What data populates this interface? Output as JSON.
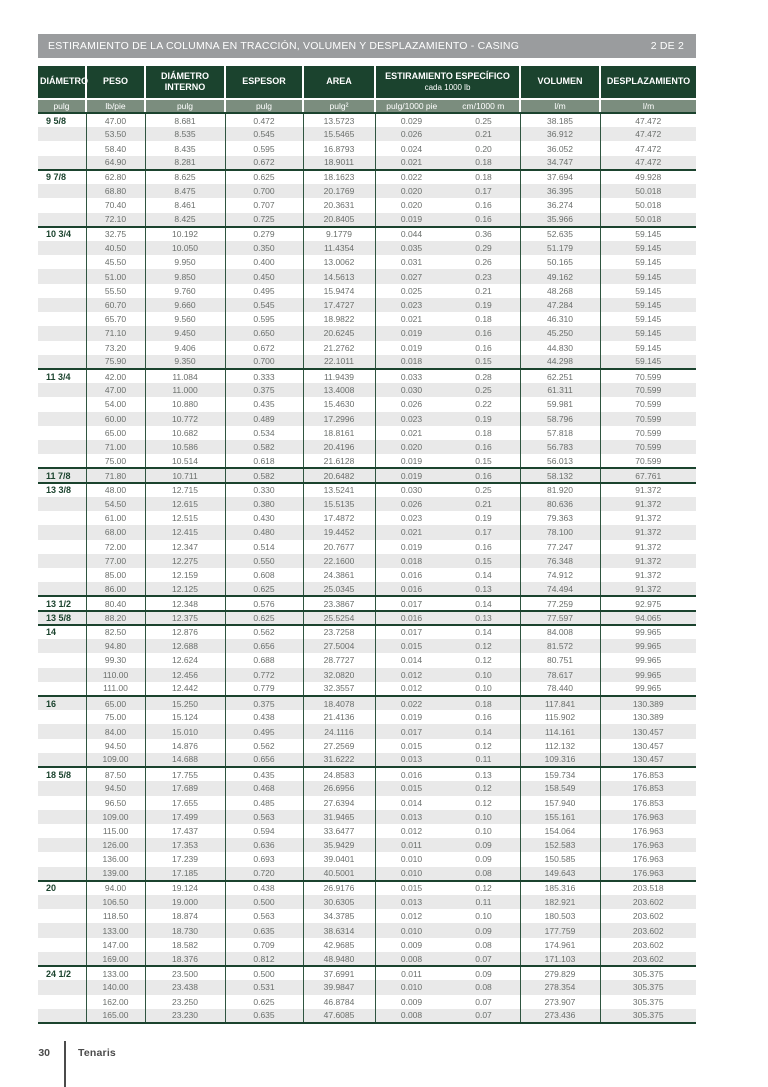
{
  "header": {
    "title": "ESTIRAMIENTO DE LA COLUMNA EN TRACCIÓN, VOLUMEN Y DESPLAZAMIENTO - CASING",
    "page_indicator": "2 DE 2"
  },
  "colors": {
    "title_bar_bg": "#9a9c9e",
    "header_bg": "#1b432e",
    "units_bg": "#7b8d7e",
    "stripe": "#e9e9e9",
    "line": "#2f5540",
    "group_line": "#1b432e",
    "data_text": "#6b6f6c",
    "accent_text": "#1b432e",
    "footer_text": "#4b4b4b"
  },
  "table": {
    "columns": [
      {
        "label": "DIÁMETRO"
      },
      {
        "label": "PESO"
      },
      {
        "label": "DIÁMETRO INTERNO"
      },
      {
        "label": "ESPESOR"
      },
      {
        "label": "AREA"
      },
      {
        "label": "ESTIRAMIENTO ESPECÍFICO",
        "sublabel": "cada 1000 lb"
      },
      {
        "label": "VOLUMEN"
      },
      {
        "label": "DESPLAZAMIENTO"
      }
    ],
    "units": [
      "pulg",
      "lb/pie",
      "pulg",
      "pulg",
      "pulg²",
      "pulg/1000 pie",
      "cm/1000 m",
      "l/m",
      "l/m"
    ],
    "groups": [
      {
        "diameter": "9 5/8",
        "rows": [
          [
            "47.00",
            "8.681",
            "0.472",
            "13.5723",
            "0.029",
            "0.25",
            "38.185",
            "47.472"
          ],
          [
            "53.50",
            "8.535",
            "0.545",
            "15.5465",
            "0.026",
            "0.21",
            "36.912",
            "47.472"
          ],
          [
            "58.40",
            "8.435",
            "0.595",
            "16.8793",
            "0.024",
            "0.20",
            "36.052",
            "47.472"
          ],
          [
            "64.90",
            "8.281",
            "0.672",
            "18.9011",
            "0.021",
            "0.18",
            "34.747",
            "47.472"
          ]
        ]
      },
      {
        "diameter": "9 7/8",
        "rows": [
          [
            "62.80",
            "8.625",
            "0.625",
            "18.1623",
            "0.022",
            "0.18",
            "37.694",
            "49.928"
          ],
          [
            "68.80",
            "8.475",
            "0.700",
            "20.1769",
            "0.020",
            "0.17",
            "36.395",
            "50.018"
          ],
          [
            "70.40",
            "8.461",
            "0.707",
            "20.3631",
            "0.020",
            "0.16",
            "36.274",
            "50.018"
          ],
          [
            "72.10",
            "8.425",
            "0.725",
            "20.8405",
            "0.019",
            "0.16",
            "35.966",
            "50.018"
          ]
        ]
      },
      {
        "diameter": "10 3/4",
        "rows": [
          [
            "32.75",
            "10.192",
            "0.279",
            "9.1779",
            "0.044",
            "0.36",
            "52.635",
            "59.145"
          ],
          [
            "40.50",
            "10.050",
            "0.350",
            "11.4354",
            "0.035",
            "0.29",
            "51.179",
            "59.145"
          ],
          [
            "45.50",
            "9.950",
            "0.400",
            "13.0062",
            "0.031",
            "0.26",
            "50.165",
            "59.145"
          ],
          [
            "51.00",
            "9.850",
            "0.450",
            "14.5613",
            "0.027",
            "0.23",
            "49.162",
            "59.145"
          ],
          [
            "55.50",
            "9.760",
            "0.495",
            "15.9474",
            "0.025",
            "0.21",
            "48.268",
            "59.145"
          ],
          [
            "60.70",
            "9.660",
            "0.545",
            "17.4727",
            "0.023",
            "0.19",
            "47.284",
            "59.145"
          ],
          [
            "65.70",
            "9.560",
            "0.595",
            "18.9822",
            "0.021",
            "0.18",
            "46.310",
            "59.145"
          ],
          [
            "71.10",
            "9.450",
            "0.650",
            "20.6245",
            "0.019",
            "0.16",
            "45.250",
            "59.145"
          ],
          [
            "73.20",
            "9.406",
            "0.672",
            "21.2762",
            "0.019",
            "0.16",
            "44.830",
            "59.145"
          ],
          [
            "75.90",
            "9.350",
            "0.700",
            "22.1011",
            "0.018",
            "0.15",
            "44.298",
            "59.145"
          ]
        ]
      },
      {
        "diameter": "11 3/4",
        "rows": [
          [
            "42.00",
            "11.084",
            "0.333",
            "11.9439",
            "0.033",
            "0.28",
            "62.251",
            "70.599"
          ],
          [
            "47.00",
            "11.000",
            "0.375",
            "13.4008",
            "0.030",
            "0.25",
            "61.311",
            "70.599"
          ],
          [
            "54.00",
            "10.880",
            "0.435",
            "15.4630",
            "0.026",
            "0.22",
            "59.981",
            "70.599"
          ],
          [
            "60.00",
            "10.772",
            "0.489",
            "17.2996",
            "0.023",
            "0.19",
            "58.796",
            "70.599"
          ],
          [
            "65.00",
            "10.682",
            "0.534",
            "18.8161",
            "0.021",
            "0.18",
            "57.818",
            "70.599"
          ],
          [
            "71.00",
            "10.586",
            "0.582",
            "20.4196",
            "0.020",
            "0.16",
            "56.783",
            "70.599"
          ],
          [
            "75.00",
            "10.514",
            "0.618",
            "21.6128",
            "0.019",
            "0.15",
            "56.013",
            "70.599"
          ]
        ]
      },
      {
        "diameter": "11 7/8",
        "rows": [
          [
            "71.80",
            "10.711",
            "0.582",
            "20.6482",
            "0.019",
            "0.16",
            "58.132",
            "67.761"
          ]
        ]
      },
      {
        "diameter": "13 3/8",
        "rows": [
          [
            "48.00",
            "12.715",
            "0.330",
            "13.5241",
            "0.030",
            "0.25",
            "81.920",
            "91.372"
          ],
          [
            "54.50",
            "12.615",
            "0.380",
            "15.5135",
            "0.026",
            "0.21",
            "80.636",
            "91.372"
          ],
          [
            "61.00",
            "12.515",
            "0.430",
            "17.4872",
            "0.023",
            "0.19",
            "79.363",
            "91.372"
          ],
          [
            "68.00",
            "12.415",
            "0.480",
            "19.4452",
            "0.021",
            "0.17",
            "78.100",
            "91.372"
          ],
          [
            "72.00",
            "12.347",
            "0.514",
            "20.7677",
            "0.019",
            "0.16",
            "77.247",
            "91.372"
          ],
          [
            "77.00",
            "12.275",
            "0.550",
            "22.1600",
            "0.018",
            "0.15",
            "76.348",
            "91.372"
          ],
          [
            "85.00",
            "12.159",
            "0.608",
            "24.3861",
            "0.016",
            "0.14",
            "74.912",
            "91.372"
          ],
          [
            "86.00",
            "12.125",
            "0.625",
            "25.0345",
            "0.016",
            "0.13",
            "74.494",
            "91.372"
          ]
        ]
      },
      {
        "diameter": "13 1/2",
        "rows": [
          [
            "80.40",
            "12.348",
            "0.576",
            "23.3867",
            "0.017",
            "0.14",
            "77.259",
            "92.975"
          ]
        ]
      },
      {
        "diameter": "13 5/8",
        "rows": [
          [
            "88.20",
            "12.375",
            "0.625",
            "25.5254",
            "0.016",
            "0.13",
            "77.597",
            "94.065"
          ]
        ]
      },
      {
        "diameter": "14",
        "rows": [
          [
            "82.50",
            "12.876",
            "0.562",
            "23.7258",
            "0.017",
            "0.14",
            "84.008",
            "99.965"
          ],
          [
            "94.80",
            "12.688",
            "0.656",
            "27.5004",
            "0.015",
            "0.12",
            "81.572",
            "99.965"
          ],
          [
            "99.30",
            "12.624",
            "0.688",
            "28.7727",
            "0.014",
            "0.12",
            "80.751",
            "99.965"
          ],
          [
            "110.00",
            "12.456",
            "0.772",
            "32.0820",
            "0.012",
            "0.10",
            "78.617",
            "99.965"
          ],
          [
            "111.00",
            "12.442",
            "0.779",
            "32.3557",
            "0.012",
            "0.10",
            "78.440",
            "99.965"
          ]
        ]
      },
      {
        "diameter": "16",
        "rows": [
          [
            "65.00",
            "15.250",
            "0.375",
            "18.4078",
            "0.022",
            "0.18",
            "117.841",
            "130.389"
          ],
          [
            "75.00",
            "15.124",
            "0.438",
            "21.4136",
            "0.019",
            "0.16",
            "115.902",
            "130.389"
          ],
          [
            "84.00",
            "15.010",
            "0.495",
            "24.1116",
            "0.017",
            "0.14",
            "114.161",
            "130.457"
          ],
          [
            "94.50",
            "14.876",
            "0.562",
            "27.2569",
            "0.015",
            "0.12",
            "112.132",
            "130.457"
          ],
          [
            "109.00",
            "14.688",
            "0.656",
            "31.6222",
            "0.013",
            "0.11",
            "109.316",
            "130.457"
          ]
        ]
      },
      {
        "diameter": "18 5/8",
        "rows": [
          [
            "87.50",
            "17.755",
            "0.435",
            "24.8583",
            "0.016",
            "0.13",
            "159.734",
            "176.853"
          ],
          [
            "94.50",
            "17.689",
            "0.468",
            "26.6956",
            "0.015",
            "0.12",
            "158.549",
            "176.853"
          ],
          [
            "96.50",
            "17.655",
            "0.485",
            "27.6394",
            "0.014",
            "0.12",
            "157.940",
            "176.853"
          ],
          [
            "109.00",
            "17.499",
            "0.563",
            "31.9465",
            "0.013",
            "0.10",
            "155.161",
            "176.963"
          ],
          [
            "115.00",
            "17.437",
            "0.594",
            "33.6477",
            "0.012",
            "0.10",
            "154.064",
            "176.963"
          ],
          [
            "126.00",
            "17.353",
            "0.636",
            "35.9429",
            "0.011",
            "0.09",
            "152.583",
            "176.963"
          ],
          [
            "136.00",
            "17.239",
            "0.693",
            "39.0401",
            "0.010",
            "0.09",
            "150.585",
            "176.963"
          ],
          [
            "139.00",
            "17.185",
            "0.720",
            "40.5001",
            "0.010",
            "0.08",
            "149.643",
            "176.963"
          ]
        ]
      },
      {
        "diameter": "20",
        "rows": [
          [
            "94.00",
            "19.124",
            "0.438",
            "26.9176",
            "0.015",
            "0.12",
            "185.316",
            "203.518"
          ],
          [
            "106.50",
            "19.000",
            "0.500",
            "30.6305",
            "0.013",
            "0.11",
            "182.921",
            "203.602"
          ],
          [
            "118.50",
            "18.874",
            "0.563",
            "34.3785",
            "0.012",
            "0.10",
            "180.503",
            "203.602"
          ],
          [
            "133.00",
            "18.730",
            "0.635",
            "38.6314",
            "0.010",
            "0.09",
            "177.759",
            "203.602"
          ],
          [
            "147.00",
            "18.582",
            "0.709",
            "42.9685",
            "0.009",
            "0.08",
            "174.961",
            "203.602"
          ],
          [
            "169.00",
            "18.376",
            "0.812",
            "48.9480",
            "0.008",
            "0.07",
            "171.103",
            "203.602"
          ]
        ]
      },
      {
        "diameter": "24 1/2",
        "rows": [
          [
            "133.00",
            "23.500",
            "0.500",
            "37.6991",
            "0.011",
            "0.09",
            "279.829",
            "305.375"
          ],
          [
            "140.00",
            "23.438",
            "0.531",
            "39.9847",
            "0.010",
            "0.08",
            "278.354",
            "305.375"
          ],
          [
            "162.00",
            "23.250",
            "0.625",
            "46.8784",
            "0.009",
            "0.07",
            "273.907",
            "305.375"
          ],
          [
            "165.00",
            "23.230",
            "0.635",
            "47.6085",
            "0.008",
            "0.07",
            "273.436",
            "305.375"
          ]
        ]
      }
    ]
  },
  "footer": {
    "page_number": "30",
    "brand": "Tenaris"
  }
}
